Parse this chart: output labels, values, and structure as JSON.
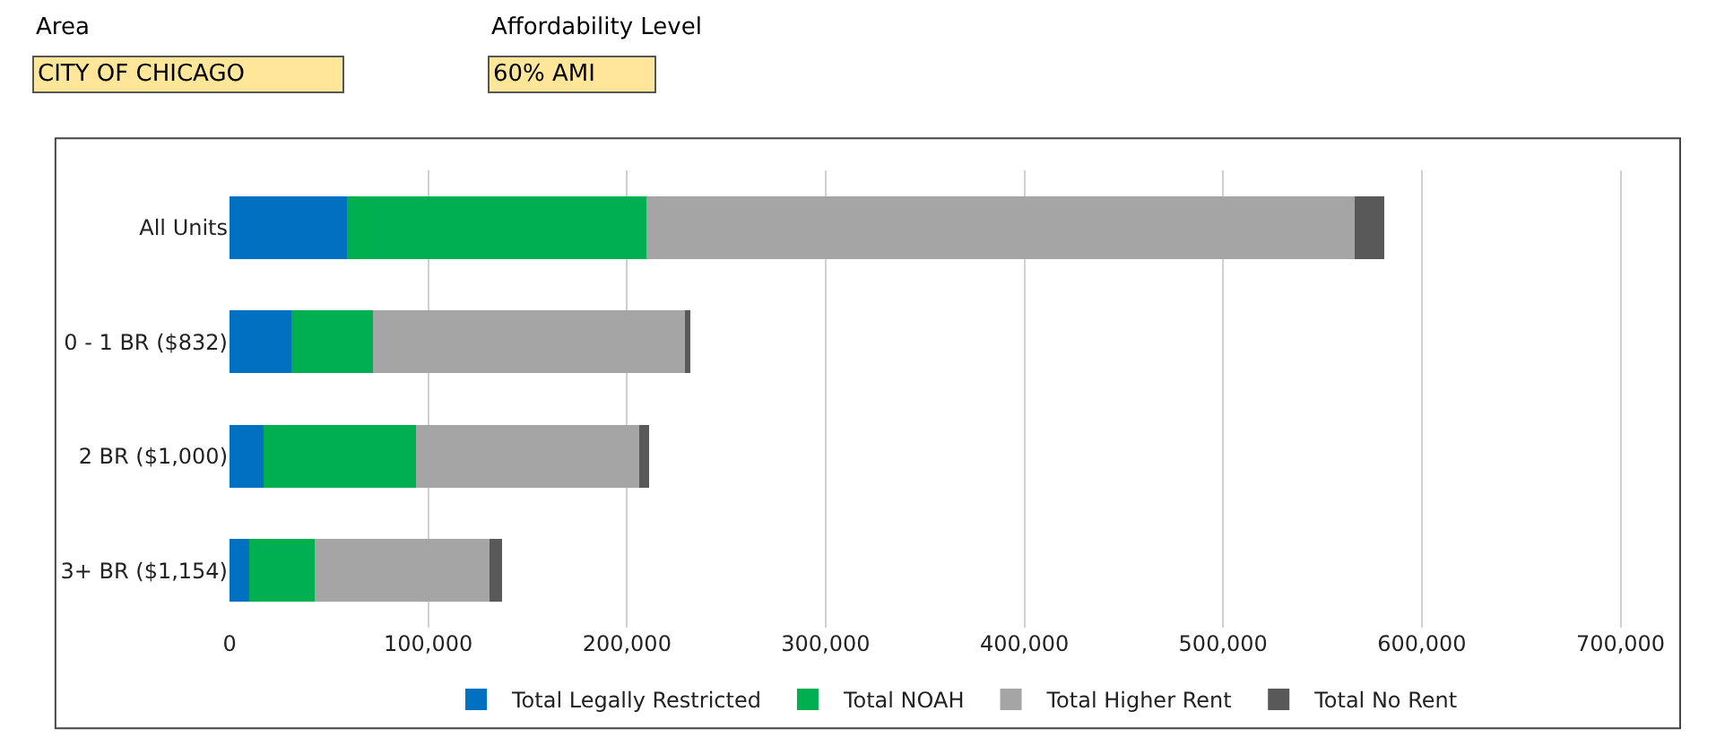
{
  "chart_data": {
    "type": "bar",
    "orientation": "horizontal",
    "stacked": true,
    "annotations": [
      "Area",
      "CITY OF CHICAGO",
      "Affordability Level",
      "60% AMI"
    ],
    "categories": [
      "All Units",
      "0 - 1 BR ($832)",
      "2 BR ($1,000)",
      "3+ BR ($1,154)"
    ],
    "series": [
      {
        "name": "Total Legally Restricted",
        "color": "#0070c0",
        "values": [
          59000,
          31000,
          17000,
          10000
        ]
      },
      {
        "name": "Total NOAH",
        "color": "#00b050",
        "values": [
          151000,
          41000,
          77000,
          33000
        ]
      },
      {
        "name": "Total Higher Rent",
        "color": "#a5a5a5",
        "values": [
          356000,
          157000,
          112000,
          88000
        ]
      },
      {
        "name": "Total No Rent",
        "color": "#595959",
        "values": [
          15000,
          3000,
          5000,
          6000
        ]
      }
    ],
    "xlim": [
      0,
      730000
    ],
    "xticks": [
      0,
      {
        "value": 100000,
        "label": "100,000"
      },
      {
        "value": 200000,
        "label": "200,000"
      },
      {
        "value": 300000,
        "label": "300,000"
      },
      {
        "value": 400000,
        "label": "400,000"
      },
      {
        "value": 500000,
        "label": "500,000"
      },
      {
        "value": 600000,
        "label": "600,000"
      },
      {
        "value": 700000,
        "label": "700,000"
      }
    ],
    "grid": "x",
    "legend": "bottom"
  }
}
